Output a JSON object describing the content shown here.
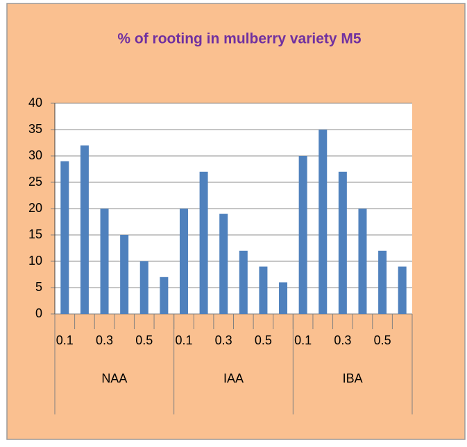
{
  "chart_data": {
    "type": "bar",
    "title": "% of rooting in mulberry variety M5",
    "categories": [
      "0.1",
      null,
      "0.3",
      null,
      "0.5",
      null,
      "0.1",
      null,
      "0.3",
      null,
      "0.5",
      null,
      "0.1",
      null,
      "0.3",
      null,
      "0.5",
      null
    ],
    "groups": [
      "NAA",
      "IAA",
      "IBA"
    ],
    "values": [
      29,
      32,
      20,
      15,
      10,
      7,
      20,
      27,
      19,
      12,
      9,
      6,
      30,
      35,
      27,
      20,
      12,
      9
    ],
    "color": "#4f81bd",
    "ylim": [
      0,
      40
    ],
    "yticks": [
      0,
      5,
      10,
      15,
      20,
      25,
      30,
      35,
      40
    ],
    "grid": true
  }
}
